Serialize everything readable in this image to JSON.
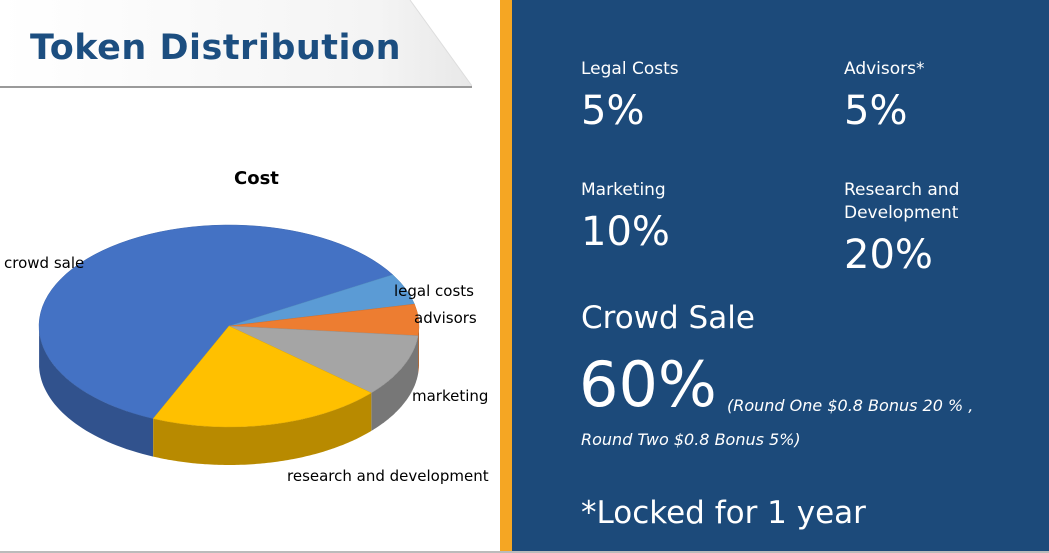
{
  "heading": "Token Distribution",
  "chart_data": {
    "type": "pie",
    "title": "Cost",
    "slices": [
      {
        "label": "crowd sale",
        "value": 60,
        "color": "#4472c4"
      },
      {
        "label": "legal costs",
        "value": 5,
        "color": "#5b9bd5"
      },
      {
        "label": "advisors",
        "value": 5,
        "color": "#ed7d31"
      },
      {
        "label": "marketing",
        "value": 10,
        "color": "#a5a5a5"
      },
      {
        "label": "research and development",
        "value": 20,
        "color": "#ffc000"
      }
    ]
  },
  "stats": {
    "legal": {
      "label": "Legal Costs",
      "value": "5%"
    },
    "advisors": {
      "label": "Advisors*",
      "value": "5%"
    },
    "marketing": {
      "label": "Marketing",
      "value": "10%"
    },
    "research": {
      "label_line1": "Research and",
      "label_line2": "Development",
      "value": "20%"
    }
  },
  "crowd": {
    "label": "Crowd Sale",
    "value": "60%",
    "rounds_line1": "(Round One $0.8 Bonus 20 % ,",
    "rounds_line2": "Round Two $0.8 Bonus 5%)"
  },
  "note": "*Locked for 1 year",
  "colors": {
    "heading": "#1c4e80",
    "panel": "#1c4a7a",
    "accent_strip": "#f5a623"
  }
}
